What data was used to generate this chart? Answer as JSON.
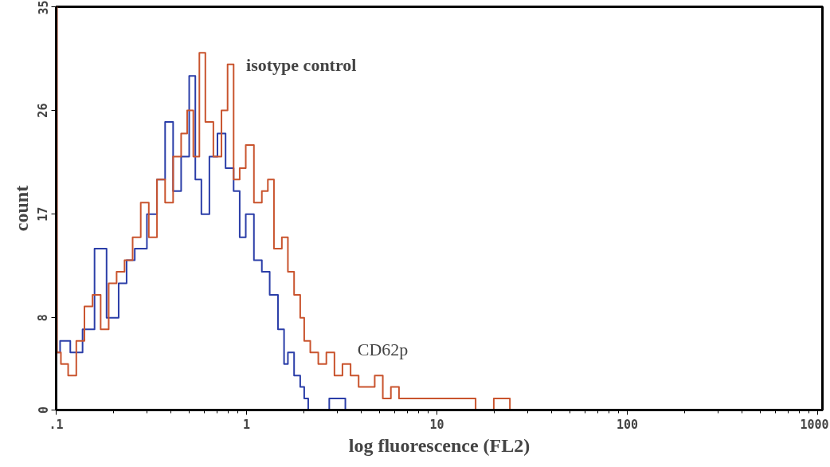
{
  "chart_data": {
    "type": "step",
    "xlabel": "log fluorescence (FL2)",
    "ylabel": "count",
    "log": "x",
    "xlim": [
      0.1,
      1060
    ],
    "xticks": [
      {
        "value": 0.1,
        "label": ".1"
      },
      1,
      10,
      100,
      1000
    ],
    "ylim": [
      0,
      35
    ],
    "yticks": [
      0,
      8,
      17,
      26,
      35
    ],
    "grid": false,
    "series": [
      {
        "color": "#2b3ea8",
        "x": [
          0.1,
          0.11,
          0.128,
          0.148,
          0.171,
          0.198,
          0.229,
          0.24,
          0.279,
          0.322,
          0.356,
          0.392,
          0.432,
          0.476,
          0.525,
          0.552,
          0.608,
          0.67,
          0.739,
          0.815,
          0.898,
          0.944,
          1.04,
          1.15,
          1.26,
          1.39,
          1.54,
          1.61,
          1.69,
          1.87,
          1.96,
          2.06,
          2.16,
          2.27,
          3.26,
          3.35,
          1060
        ],
        "values": [
          5,
          6,
          5,
          7,
          14,
          8,
          11,
          13,
          14,
          17,
          20,
          25,
          19,
          22,
          29,
          20,
          17,
          22,
          24,
          21,
          19,
          15,
          17,
          13,
          12,
          10,
          7,
          4,
          5,
          3,
          2,
          1,
          0,
          0,
          1,
          0,
          0
        ]
      },
      {
        "color": "#c9542e",
        "x": [
          0.1,
          0.102,
          0.11,
          0.1215,
          0.134,
          0.148,
          0.163,
          0.18,
          0.198,
          0.218,
          0.24,
          0.265,
          0.292,
          0.322,
          0.356,
          0.392,
          0.432,
          0.476,
          0.5,
          0.552,
          0.579,
          0.638,
          0.703,
          0.776,
          0.815,
          0.898,
          0.944,
          1.04,
          1.15,
          1.26,
          1.33,
          1.46,
          1.61,
          1.69,
          1.87,
          1.96,
          2.06,
          2.27,
          2.5,
          2.76,
          3.04,
          3.35,
          3.7,
          4.07,
          4.49,
          4.95,
          5.46,
          6.02,
          6.64,
          7.31,
          8.47,
          9.8,
          11.4,
          14.5,
          17.6,
          22.5,
          26,
          1060
        ],
        "values": [
          35,
          5,
          4,
          3,
          6,
          9,
          10,
          7,
          11,
          12,
          13,
          15,
          18,
          15,
          20,
          18,
          22,
          24,
          26,
          22,
          31,
          25,
          22,
          26,
          30,
          20,
          21,
          23,
          18,
          19,
          20,
          14,
          15,
          12,
          10,
          8,
          6,
          5,
          4,
          5,
          3,
          4,
          3,
          2,
          2,
          3,
          1,
          2,
          1,
          1,
          1,
          1,
          1,
          1,
          0,
          1,
          0,
          0
        ]
      }
    ],
    "annotations": [
      "isotype control",
      "CD62p"
    ]
  }
}
